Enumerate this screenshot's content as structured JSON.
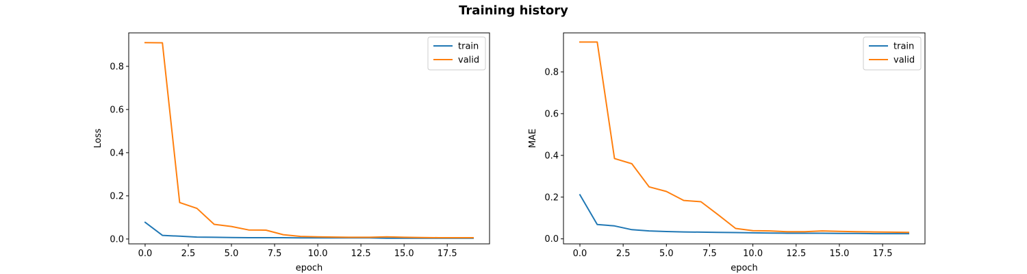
{
  "figure": {
    "title": "Training history"
  },
  "chart_data": [
    {
      "type": "line",
      "title": "",
      "xlabel": "epoch",
      "ylabel": "Loss",
      "xlim": [
        -0.95,
        19.95
      ],
      "ylim": [
        -0.0225,
        0.955
      ],
      "xticks": [
        0.0,
        2.5,
        5.0,
        7.5,
        10.0,
        12.5,
        15.0,
        17.5
      ],
      "xtick_labels": [
        "0.0",
        "2.5",
        "5.0",
        "7.5",
        "10.0",
        "12.5",
        "15.0",
        "17.5"
      ],
      "yticks": [
        0.0,
        0.2,
        0.4,
        0.6,
        0.8
      ],
      "ytick_labels": [
        "0.0",
        "0.2",
        "0.4",
        "0.6",
        "0.8"
      ],
      "legend": "upper right",
      "grid": false,
      "series": [
        {
          "name": "train",
          "color": "#1f77b4",
          "x": [
            0,
            1,
            2,
            3,
            4,
            5,
            6,
            7,
            8,
            9,
            10,
            11,
            12,
            13,
            14,
            15,
            16,
            17,
            18,
            19
          ],
          "values": [
            0.077,
            0.017,
            0.013,
            0.009,
            0.008,
            0.007,
            0.006,
            0.006,
            0.006,
            0.005,
            0.005,
            0.005,
            0.005,
            0.005,
            0.004,
            0.004,
            0.004,
            0.004,
            0.004,
            0.004
          ]
        },
        {
          "name": "valid",
          "color": "#ff7f0e",
          "x": [
            0,
            1,
            2,
            3,
            4,
            5,
            6,
            7,
            8,
            9,
            10,
            11,
            12,
            13,
            14,
            15,
            16,
            17,
            18,
            19
          ],
          "values": [
            0.91,
            0.909,
            0.169,
            0.142,
            0.068,
            0.058,
            0.042,
            0.041,
            0.02,
            0.012,
            0.01,
            0.009,
            0.008,
            0.008,
            0.01,
            0.008,
            0.007,
            0.006,
            0.006,
            0.006
          ]
        }
      ]
    },
    {
      "type": "line",
      "title": "",
      "xlabel": "epoch",
      "ylabel": "MAE",
      "xlim": [
        -0.95,
        19.95
      ],
      "ylim": [
        -0.024,
        0.987
      ],
      "xticks": [
        0.0,
        2.5,
        5.0,
        7.5,
        10.0,
        12.5,
        15.0,
        17.5
      ],
      "xtick_labels": [
        "0.0",
        "2.5",
        "5.0",
        "7.5",
        "10.0",
        "12.5",
        "15.0",
        "17.5"
      ],
      "yticks": [
        0.0,
        0.2,
        0.4,
        0.6,
        0.8
      ],
      "ytick_labels": [
        "0.0",
        "0.2",
        "0.4",
        "0.6",
        "0.8"
      ],
      "legend": "upper right",
      "grid": false,
      "series": [
        {
          "name": "train",
          "color": "#1f77b4",
          "x": [
            0,
            1,
            2,
            3,
            4,
            5,
            6,
            7,
            8,
            9,
            10,
            11,
            12,
            13,
            14,
            15,
            16,
            17,
            18,
            19
          ],
          "values": [
            0.211,
            0.069,
            0.062,
            0.044,
            0.038,
            0.035,
            0.033,
            0.032,
            0.031,
            0.03,
            0.029,
            0.028,
            0.027,
            0.027,
            0.027,
            0.026,
            0.026,
            0.025,
            0.025,
            0.025
          ]
        },
        {
          "name": "valid",
          "color": "#ff7f0e",
          "x": [
            0,
            1,
            2,
            3,
            4,
            5,
            6,
            7,
            8,
            9,
            10,
            11,
            12,
            13,
            14,
            15,
            16,
            17,
            18,
            19
          ],
          "values": [
            0.943,
            0.943,
            0.385,
            0.36,
            0.249,
            0.227,
            0.184,
            0.178,
            0.115,
            0.05,
            0.039,
            0.038,
            0.034,
            0.034,
            0.038,
            0.036,
            0.034,
            0.033,
            0.032,
            0.031
          ]
        }
      ]
    }
  ]
}
